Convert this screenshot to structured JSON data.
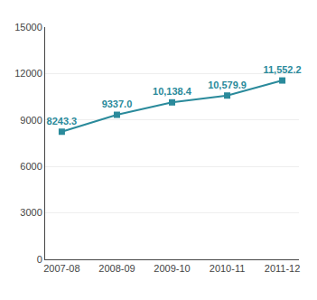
{
  "chart_data": {
    "type": "line",
    "categories": [
      "2007-08",
      "2008-09",
      "2009-10",
      "2010-11",
      "2011-12"
    ],
    "values": [
      8243.3,
      9337.0,
      10138.4,
      10579.9,
      11552.2
    ],
    "value_labels": [
      "8243.3",
      "9337.0",
      "10,138.4",
      "10,579.9",
      "11,552.2"
    ],
    "data_labels": true,
    "color": "#2A8A9B",
    "marker": "square",
    "ylim": [
      0,
      15000
    ],
    "yticks": [
      0,
      3000,
      6000,
      9000,
      12000,
      15000
    ],
    "grid": true
  }
}
